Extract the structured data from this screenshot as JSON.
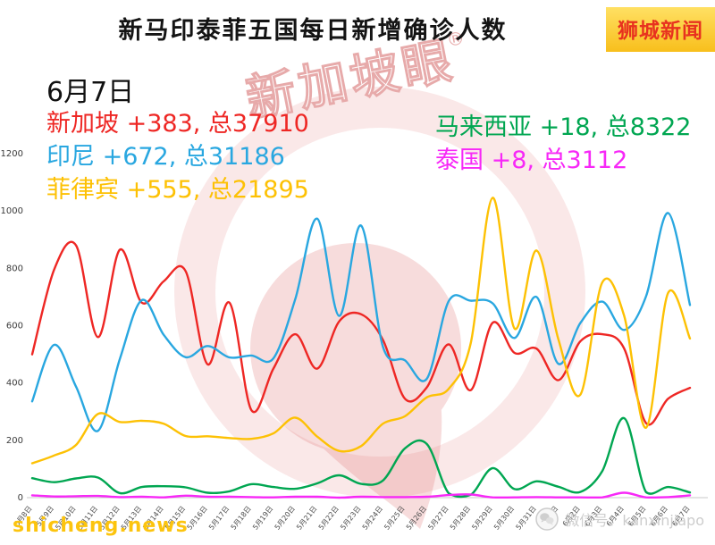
{
  "header": {
    "title": "新马印泰菲五国每日新增确诊人数",
    "brand": "狮城新闻"
  },
  "date_label": "6月7日",
  "legend": [
    {
      "name": "singapore",
      "text": "新加坡 +383, 总37910",
      "color": "#ee2724"
    },
    {
      "name": "indonesia",
      "text": "印尼 +672, 总31186",
      "color": "#29a7e0"
    },
    {
      "name": "philippines",
      "text": "菲律宾 +555, 总21895",
      "color": "#fdc104"
    },
    {
      "name": "malaysia",
      "text": "马来西亚 +18, 总8322",
      "color": "#00a651"
    },
    {
      "name": "thailand",
      "text": "泰国 +8, 总3112",
      "color": "#f728f7"
    }
  ],
  "watermark": {
    "text": "新加坡眼",
    "reg": "®"
  },
  "footer": {
    "site": "shicheng.news",
    "wechat": "微信号：kanxinjiapo"
  },
  "chart_data": {
    "type": "line",
    "title": "新马印泰菲五国每日新增确诊人数",
    "xlabel": "",
    "ylabel": "",
    "ylim": [
      0,
      1200
    ],
    "yticks": [
      0,
      200,
      400,
      600,
      800,
      1000,
      1200
    ],
    "grid": false,
    "legend_position": "top-left",
    "x": [
      "5月8日",
      "5月9日",
      "5月10日",
      "5月11日",
      "5月12日",
      "5月13日",
      "5月14日",
      "5月15日",
      "5月16日",
      "5月17日",
      "5月18日",
      "5月19日",
      "5月20日",
      "5月21日",
      "5月22日",
      "5月23日",
      "5月24日",
      "5月25日",
      "5月26日",
      "5月27日",
      "5月28日",
      "5月29日",
      "5月30日",
      "5月31日",
      "6月1日",
      "6月2日",
      "6月3日",
      "6月4日",
      "6月5日",
      "6月6日",
      "6月7日"
    ],
    "series": [
      {
        "name": "新加坡",
        "color": "#ee2724",
        "values": [
          500,
          795,
          880,
          560,
          865,
          680,
          755,
          790,
          465,
          680,
          305,
          450,
          570,
          450,
          615,
          640,
          550,
          345,
          385,
          535,
          375,
          610,
          505,
          520,
          410,
          545,
          570,
          520,
          260,
          345,
          383
        ]
      },
      {
        "name": "印尼",
        "color": "#29a7e0",
        "values": [
          336,
          533,
          387,
          233,
          484,
          689,
          568,
          490,
          529,
          489,
          496,
          486,
          693,
          973,
          634,
          949,
          526,
          479,
          415,
          686,
          687,
          678,
          557,
          700,
          467,
          609,
          684,
          585,
          703,
          993,
          672
        ]
      },
      {
        "name": "菲律宾",
        "color": "#fdc104",
        "values": [
          120,
          147,
          184,
          292,
          264,
          268,
          258,
          215,
          214,
          208,
          205,
          224,
          279,
          213,
          163,
          180,
          258,
          284,
          350,
          380,
          539,
          1046,
          590,
          862,
          552,
          359,
          751,
          634,
          244,
          714,
          555
        ]
      },
      {
        "name": "马来西亚",
        "color": "#00a651",
        "values": [
          68,
          54,
          67,
          70,
          16,
          37,
          40,
          36,
          17,
          22,
          47,
          37,
          31,
          50,
          78,
          48,
          60,
          172,
          187,
          15,
          10,
          103,
          30,
          57,
          38,
          20,
          93,
          277,
          19,
          37,
          18
        ]
      },
      {
        "name": "泰国",
        "color": "#f728f7",
        "values": [
          8,
          4,
          5,
          6,
          2,
          3,
          1,
          7,
          3,
          3,
          2,
          1,
          3,
          3,
          0,
          3,
          2,
          2,
          3,
          9,
          11,
          1,
          1,
          2,
          1,
          1,
          1,
          17,
          1,
          2,
          8
        ]
      }
    ]
  }
}
